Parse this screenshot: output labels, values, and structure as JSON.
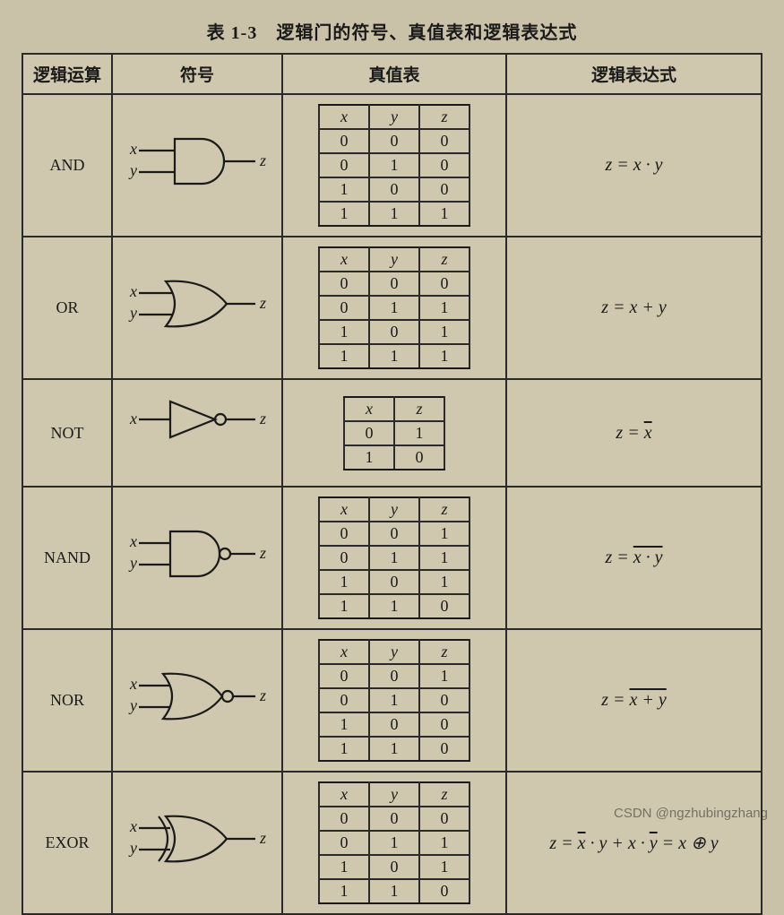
{
  "caption": "表 1-3　逻辑门的符号、真值表和逻辑表达式",
  "headers": {
    "op": "逻辑运算",
    "sym": "符号",
    "tt": "真值表",
    "expr": "逻辑表达式"
  },
  "ttvars3": [
    "x",
    "y",
    "z"
  ],
  "ttvars2": [
    "x",
    "z"
  ],
  "gates": {
    "and": {
      "name": "AND",
      "inputs": [
        "x",
        "y"
      ],
      "output": "z",
      "rows": [
        [
          0,
          0,
          0
        ],
        [
          0,
          1,
          0
        ],
        [
          1,
          0,
          0
        ],
        [
          1,
          1,
          1
        ]
      ],
      "expr_html": "z = x · y"
    },
    "or": {
      "name": "OR",
      "inputs": [
        "x",
        "y"
      ],
      "output": "z",
      "rows": [
        [
          0,
          0,
          0
        ],
        [
          0,
          1,
          1
        ],
        [
          1,
          0,
          1
        ],
        [
          1,
          1,
          1
        ]
      ],
      "expr_html": "z = x + y"
    },
    "not": {
      "name": "NOT",
      "inputs": [
        "x"
      ],
      "output": "z",
      "rows": [
        [
          0,
          1
        ],
        [
          1,
          0
        ]
      ],
      "expr_html": "z = <span class=\"ov\">x</span>"
    },
    "nand": {
      "name": "NAND",
      "inputs": [
        "x",
        "y"
      ],
      "output": "z",
      "rows": [
        [
          0,
          0,
          1
        ],
        [
          0,
          1,
          1
        ],
        [
          1,
          0,
          1
        ],
        [
          1,
          1,
          0
        ]
      ],
      "expr_html": "z = <span class=\"ov\">x · y</span>"
    },
    "nor": {
      "name": "NOR",
      "inputs": [
        "x",
        "y"
      ],
      "output": "z",
      "rows": [
        [
          0,
          0,
          1
        ],
        [
          0,
          1,
          0
        ],
        [
          1,
          0,
          0
        ],
        [
          1,
          1,
          0
        ]
      ],
      "expr_html": "z = <span class=\"ov\">x + y</span>"
    },
    "exor": {
      "name": "EXOR",
      "inputs": [
        "x",
        "y"
      ],
      "output": "z",
      "rows": [
        [
          0,
          0,
          0
        ],
        [
          0,
          1,
          1
        ],
        [
          1,
          0,
          1
        ],
        [
          1,
          1,
          0
        ]
      ],
      "expr_html": "z = <span class=\"ov\">x</span> · y + x · <span class=\"ov\">y</span> = x ⊕ y"
    }
  },
  "watermark": "CSDN @ngzhubingzhang",
  "style": {
    "page_bg": "#c9c1a8",
    "cell_bg": "#cfc7ae",
    "border_color": "#2a2a2a",
    "stroke_color": "#1a1a1a",
    "caption_fontsize": 20,
    "header_fontsize": 19,
    "body_fontsize": 18,
    "expr_fontsize": 20
  }
}
